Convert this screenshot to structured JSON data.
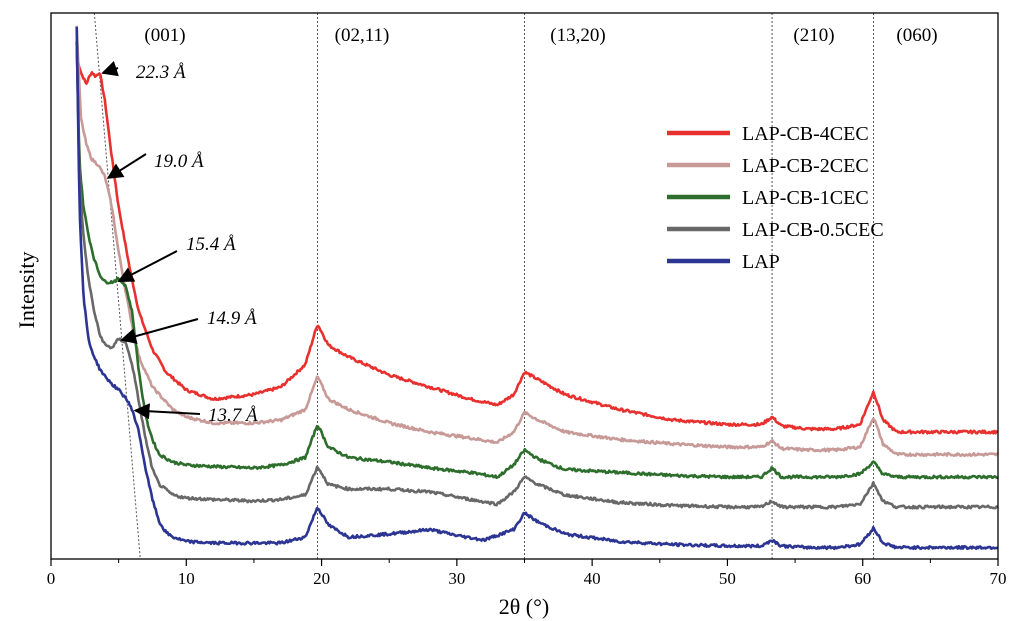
{
  "chart_data": {
    "type": "line",
    "xlabel": "2θ (°)",
    "ylabel": "Intensity",
    "xlim": [
      0,
      70
    ],
    "x_ticks": [
      0,
      10,
      20,
      30,
      40,
      50,
      60,
      70
    ],
    "y_ticks_shown": false,
    "legend_position": "right",
    "peak_labels": [
      {
        "label": "(001)"
      },
      {
        "label": "(02,11)",
        "x": 19.7
      },
      {
        "label": "(13,20)",
        "x": 35.0
      },
      {
        "label": "(210)",
        "x": 53.3
      },
      {
        "label": "(060)",
        "x": 60.8
      }
    ],
    "annotations": [
      {
        "text": "22.3 Å",
        "series": "LAP-CB-4CEC",
        "x": 3.6
      },
      {
        "text": "19.0 Å",
        "series": "LAP-CB-2CEC",
        "x": 4.0
      },
      {
        "text": "15.4 Å",
        "series": "LAP-CB-1CEC",
        "x": 4.8
      },
      {
        "text": "14.9 Å",
        "series": "LAP-CB-0.5CEC",
        "x": 5.0
      },
      {
        "text": "13.7 Å",
        "series": "LAP",
        "x": 6.0
      }
    ],
    "series": [
      {
        "name": "LAP-CB-4CEC",
        "color": "#e8312f",
        "x": [
          1.9,
          2.2,
          2.6,
          3.0,
          3.3,
          3.6,
          4.0,
          4.4,
          5.0,
          5.8,
          6.5,
          7.5,
          8.5,
          10,
          12,
          15,
          17,
          18.8,
          19.7,
          20.5,
          22,
          25,
          28,
          31,
          33,
          34.2,
          35.0,
          36,
          38,
          42,
          46,
          50,
          52.5,
          53.3,
          54,
          56,
          58,
          59.8,
          60.8,
          61.5,
          62.5,
          65,
          70
        ],
        "y": [
          3.3,
          3.2,
          3.12,
          3.2,
          3.17,
          3.2,
          3.0,
          2.7,
          2.3,
          1.9,
          1.6,
          1.35,
          1.2,
          1.08,
          1.02,
          1.05,
          1.1,
          1.25,
          1.52,
          1.38,
          1.3,
          1.18,
          1.1,
          1.02,
          0.98,
          1.05,
          1.2,
          1.15,
          1.05,
          0.95,
          0.88,
          0.85,
          0.85,
          0.9,
          0.84,
          0.82,
          0.82,
          0.85,
          1.07,
          0.88,
          0.8,
          0.8,
          0.8
        ]
      },
      {
        "name": "LAP-CB-2CEC",
        "color": "#c79a98",
        "x": [
          1.9,
          2.2,
          2.6,
          3.0,
          3.5,
          4.0,
          4.5,
          5.0,
          5.8,
          6.5,
          7.5,
          9,
          10,
          12,
          15,
          17,
          18.8,
          19.7,
          20.5,
          22,
          25,
          28,
          31,
          33,
          34.2,
          35.0,
          36,
          38,
          42,
          46,
          50,
          52.5,
          53.3,
          54,
          56,
          58,
          59.8,
          60.8,
          61.5,
          62.5,
          65,
          70
        ],
        "y": [
          3.5,
          2.9,
          2.72,
          2.62,
          2.58,
          2.5,
          2.3,
          2.0,
          1.6,
          1.3,
          1.1,
          0.95,
          0.9,
          0.86,
          0.86,
          0.88,
          0.95,
          1.17,
          1.02,
          0.95,
          0.86,
          0.8,
          0.76,
          0.73,
          0.8,
          0.93,
          0.88,
          0.8,
          0.75,
          0.72,
          0.7,
          0.7,
          0.74,
          0.69,
          0.68,
          0.68,
          0.7,
          0.9,
          0.72,
          0.65,
          0.65,
          0.65
        ]
      },
      {
        "name": "LAP-CB-1CEC",
        "color": "#2d6e2d",
        "x": [
          1.9,
          2.1,
          2.4,
          2.8,
          3.2,
          3.6,
          4.0,
          4.5,
          5.0,
          5.5,
          6.0,
          6.5,
          7.0,
          7.5,
          8.0,
          9,
          10,
          12,
          15,
          17,
          18.8,
          19.7,
          20.5,
          22,
          25,
          28,
          31,
          33,
          34.2,
          35.0,
          36,
          38,
          42,
          46,
          50,
          52.5,
          53.3,
          54,
          56,
          58,
          59.8,
          60.8,
          61.5,
          62.5,
          65,
          70
        ],
        "y": [
          3.4,
          2.6,
          2.3,
          2.1,
          1.95,
          1.85,
          1.8,
          1.8,
          1.82,
          1.78,
          1.6,
          1.2,
          0.9,
          0.75,
          0.65,
          0.6,
          0.58,
          0.57,
          0.56,
          0.58,
          0.63,
          0.85,
          0.7,
          0.63,
          0.6,
          0.56,
          0.53,
          0.5,
          0.58,
          0.68,
          0.62,
          0.55,
          0.53,
          0.51,
          0.5,
          0.5,
          0.56,
          0.5,
          0.5,
          0.5,
          0.52,
          0.6,
          0.52,
          0.5,
          0.5,
          0.5
        ]
      },
      {
        "name": "LAP-CB-0.5CEC",
        "color": "#686868",
        "x": [
          1.9,
          2.1,
          2.4,
          2.8,
          3.2,
          3.6,
          4.0,
          4.5,
          5.0,
          5.5,
          6.0,
          6.5,
          7.0,
          7.5,
          8.0,
          9,
          10,
          12,
          15,
          17,
          18.8,
          19.7,
          20.5,
          22,
          25,
          28,
          31,
          33,
          34.2,
          35.0,
          36,
          38,
          42,
          46,
          50,
          52.5,
          53.3,
          54,
          56,
          58,
          59.8,
          60.8,
          61.5,
          62.5,
          65,
          70
        ],
        "y": [
          3.4,
          2.5,
          2.1,
          1.8,
          1.6,
          1.45,
          1.38,
          1.36,
          1.42,
          1.4,
          1.25,
          1.0,
          0.75,
          0.55,
          0.45,
          0.38,
          0.36,
          0.35,
          0.34,
          0.35,
          0.38,
          0.57,
          0.45,
          0.42,
          0.42,
          0.4,
          0.35,
          0.32,
          0.4,
          0.5,
          0.45,
          0.38,
          0.33,
          0.31,
          0.3,
          0.3,
          0.34,
          0.3,
          0.3,
          0.3,
          0.32,
          0.46,
          0.34,
          0.3,
          0.3,
          0.3
        ]
      },
      {
        "name": "LAP",
        "color": "#2c3592",
        "x": [
          1.9,
          2.1,
          2.4,
          2.8,
          3.2,
          3.6,
          4.0,
          4.5,
          5.0,
          5.5,
          6.0,
          6.5,
          7.0,
          7.5,
          8.0,
          8.5,
          9,
          10,
          12,
          15,
          17,
          18.8,
          19.7,
          20.5,
          22,
          25,
          28,
          30,
          32,
          34.2,
          35.0,
          36,
          38,
          42,
          46,
          50,
          52.5,
          53.3,
          54,
          56,
          58,
          59.8,
          60.8,
          61.5,
          62.5,
          65,
          70
        ],
        "y": [
          3.5,
          2.3,
          1.7,
          1.4,
          1.3,
          1.22,
          1.17,
          1.12,
          1.08,
          1.03,
          0.95,
          0.8,
          0.55,
          0.35,
          0.2,
          0.13,
          0.1,
          0.07,
          0.06,
          0.06,
          0.06,
          0.1,
          0.3,
          0.18,
          0.1,
          0.12,
          0.15,
          0.11,
          0.08,
          0.15,
          0.26,
          0.2,
          0.12,
          0.07,
          0.05,
          0.04,
          0.04,
          0.08,
          0.04,
          0.03,
          0.03,
          0.05,
          0.16,
          0.06,
          0.03,
          0.03,
          0.03
        ]
      }
    ]
  }
}
